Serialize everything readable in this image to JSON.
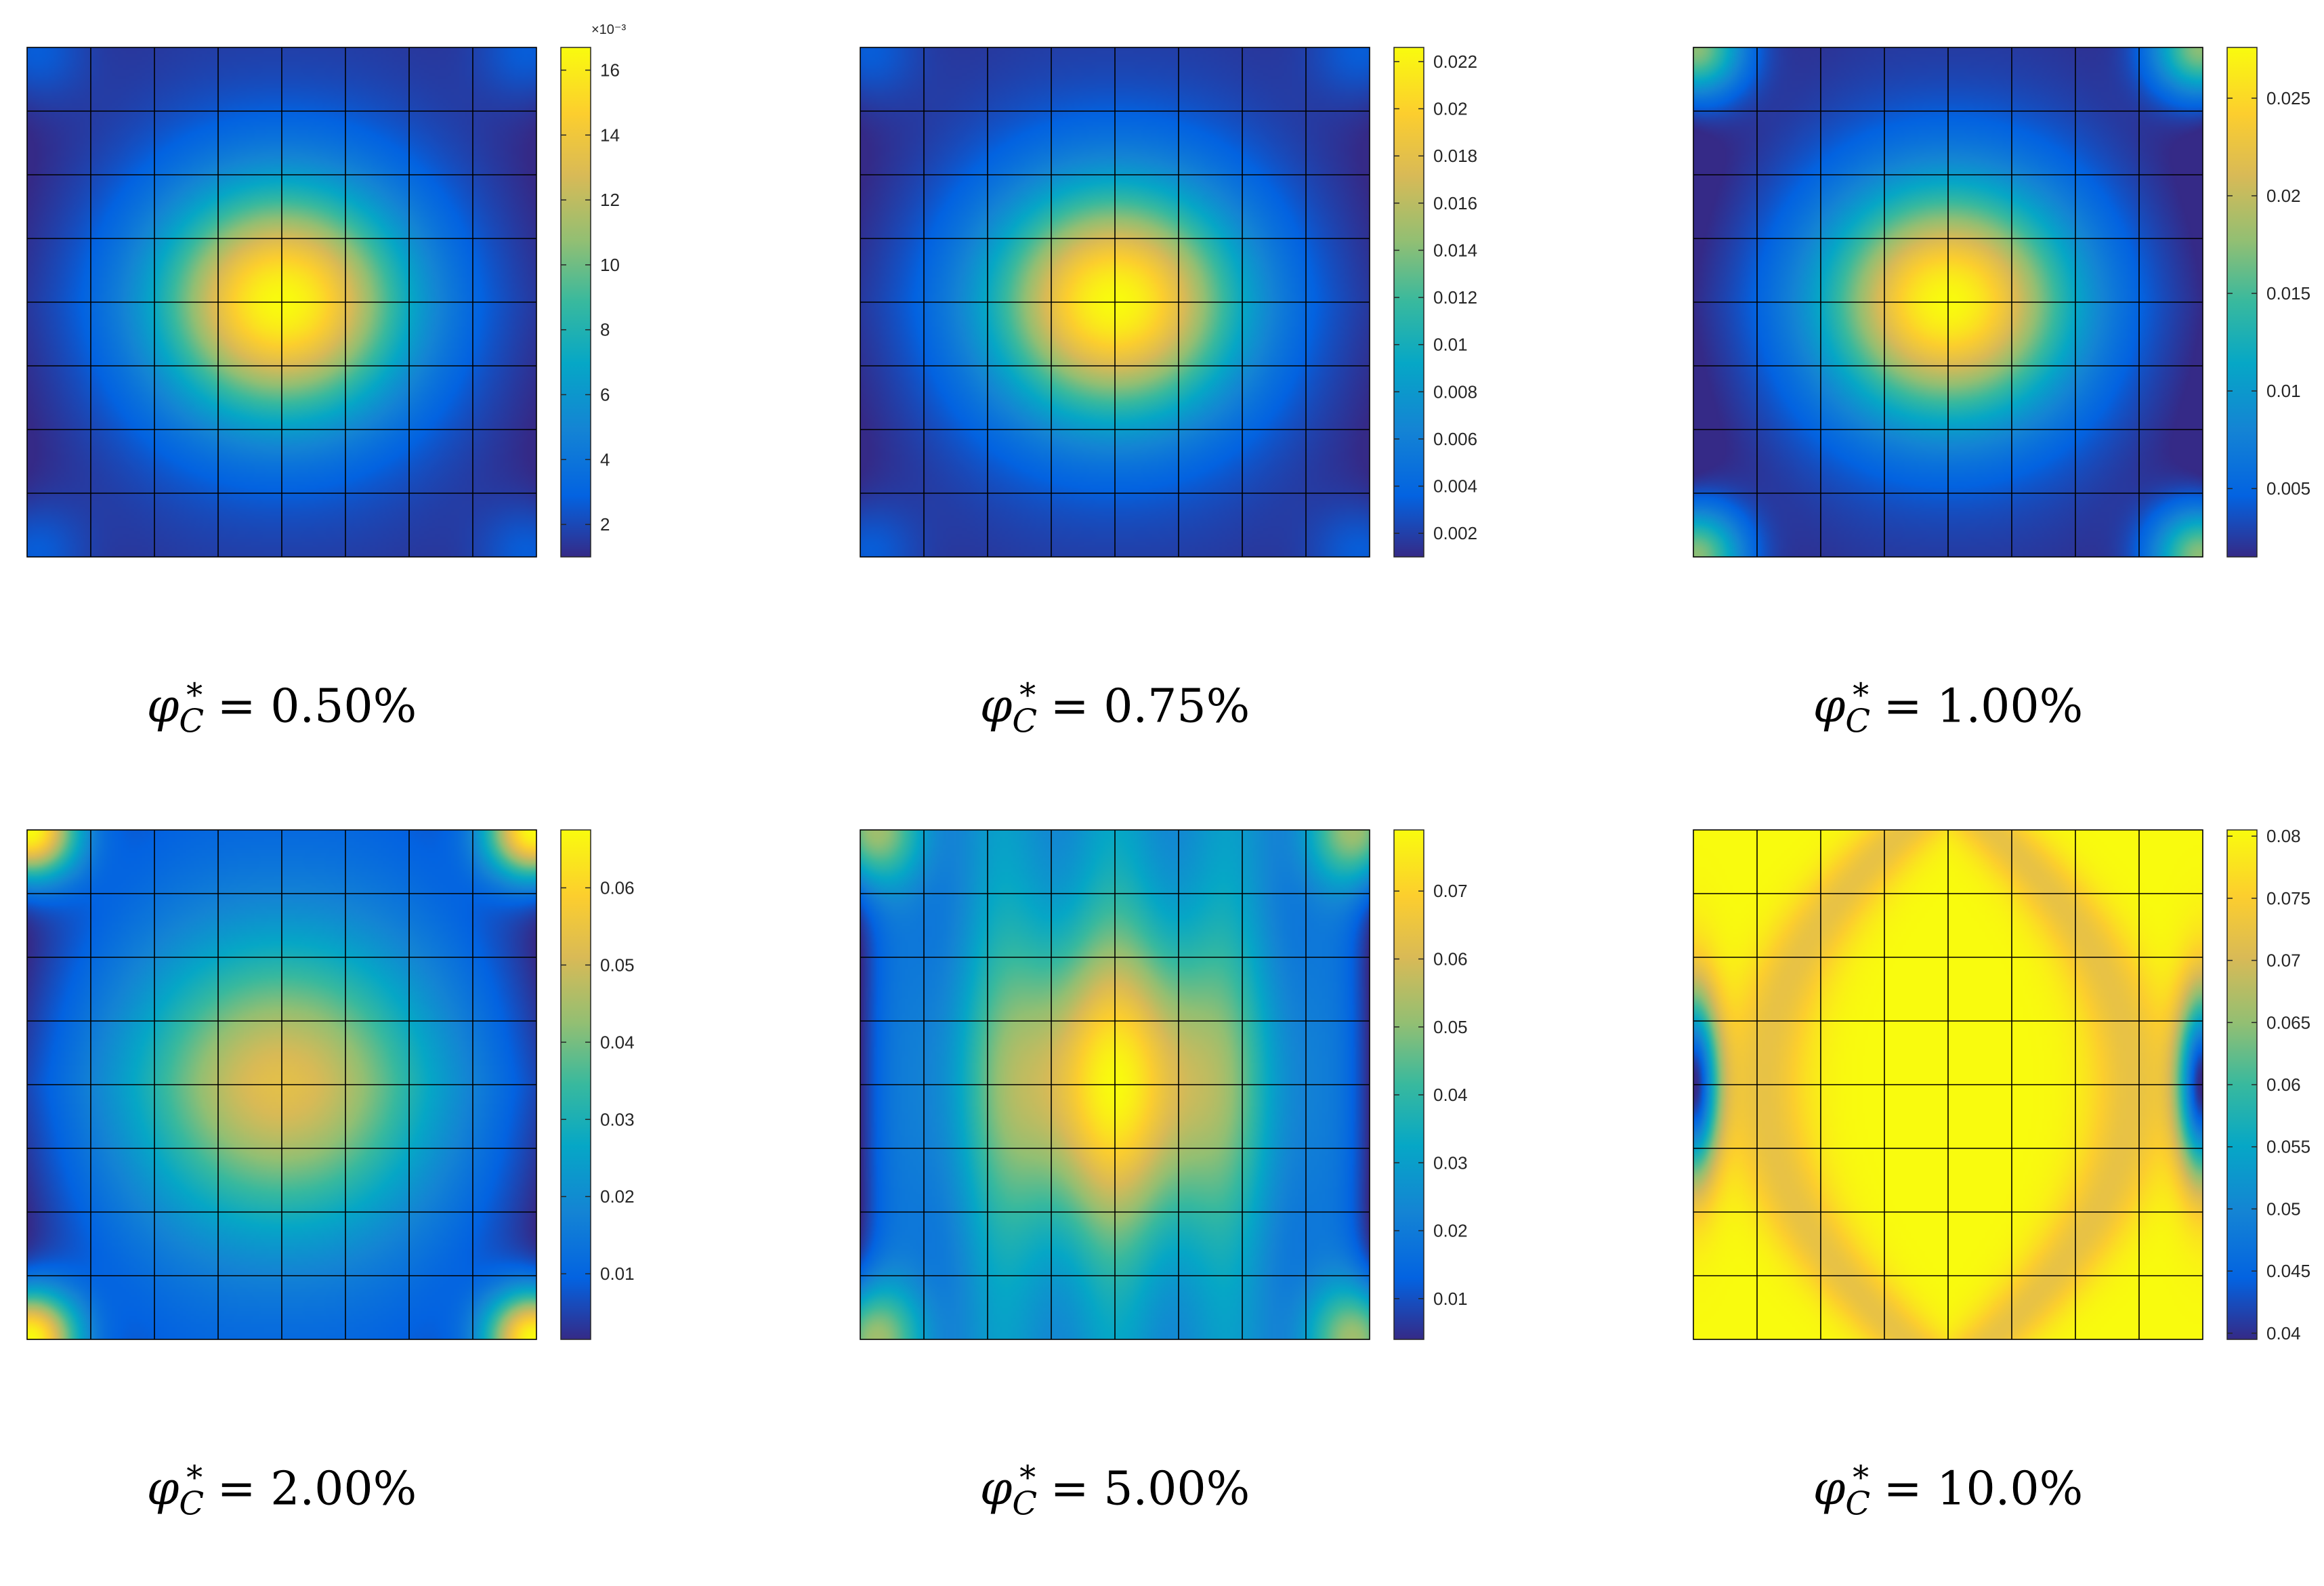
{
  "figure": {
    "rows": 2,
    "cols": 3,
    "colormap": "parula"
  },
  "chart_data": [
    {
      "type": "heatmap",
      "title": "",
      "caption": {
        "symbol": "φ",
        "sub": "C",
        "sup": "*",
        "eq": "= 0.50%"
      },
      "pattern": "center-peak",
      "mesh": "8x8",
      "colorbar": {
        "min": 0.001,
        "max": 0.0167,
        "ticks": [
          2,
          4,
          6,
          8,
          10,
          12,
          14,
          16
        ],
        "tick_labels": [
          "2",
          "4",
          "6",
          "8",
          "10",
          "12",
          "14",
          "16"
        ],
        "scale": 0.001,
        "exponent_label": "×10⁻³"
      }
    },
    {
      "type": "heatmap",
      "title": "",
      "caption": {
        "symbol": "φ",
        "sub": "C",
        "sup": "*",
        "eq": "= 0.75%"
      },
      "pattern": "center-peak",
      "mesh": "8x8",
      "colorbar": {
        "min": 0.001,
        "max": 0.0226,
        "ticks": [
          0.002,
          0.004,
          0.006,
          0.008,
          0.01,
          0.012,
          0.014,
          0.016,
          0.018,
          0.02,
          0.022
        ],
        "tick_labels": [
          "0.002",
          "0.004",
          "0.006",
          "0.008",
          "0.01",
          "0.012",
          "0.014",
          "0.016",
          "0.018",
          "0.02",
          "0.022"
        ],
        "scale": 1,
        "exponent_label": ""
      }
    },
    {
      "type": "heatmap",
      "title": "",
      "caption": {
        "symbol": "φ",
        "sub": "C",
        "sup": "*",
        "eq": "= 1.00%"
      },
      "pattern": "center-peak-corners",
      "mesh": "8x8",
      "colorbar": {
        "min": 0.0015,
        "max": 0.0276,
        "ticks": [
          0.005,
          0.01,
          0.015,
          0.02,
          0.025
        ],
        "tick_labels": [
          "0.005",
          "0.01",
          "0.015",
          "0.02",
          "0.025"
        ],
        "scale": 1,
        "exponent_label": ""
      }
    },
    {
      "type": "heatmap",
      "title": "",
      "caption": {
        "symbol": "φ",
        "sub": "C",
        "sup": "*",
        "eq": "= 2.00%"
      },
      "pattern": "corner-peaks",
      "mesh": "8x8",
      "colorbar": {
        "min": 0.0015,
        "max": 0.0675,
        "ticks": [
          0.01,
          0.02,
          0.03,
          0.04,
          0.05,
          0.06
        ],
        "tick_labels": [
          "0.01",
          "0.02",
          "0.03",
          "0.04",
          "0.05",
          "0.06"
        ],
        "scale": 1,
        "exponent_label": ""
      }
    },
    {
      "type": "heatmap",
      "title": "",
      "caption": {
        "symbol": "φ",
        "sub": "C",
        "sup": "*",
        "eq": "= 5.00%"
      },
      "pattern": "center-and-corners",
      "mesh": "8x8",
      "colorbar": {
        "min": 0.004,
        "max": 0.079,
        "ticks": [
          0.01,
          0.02,
          0.03,
          0.04,
          0.05,
          0.06,
          0.07
        ],
        "tick_labels": [
          "0.01",
          "0.02",
          "0.03",
          "0.04",
          "0.05",
          "0.06",
          "0.07"
        ],
        "scale": 1,
        "exponent_label": ""
      }
    },
    {
      "type": "heatmap",
      "title": "",
      "caption": {
        "symbol": "φ",
        "sub": "C",
        "sup": "*",
        "eq": "= 10.0%"
      },
      "pattern": "hourglass-high",
      "mesh": "8x8",
      "colorbar": {
        "min": 0.0395,
        "max": 0.0805,
        "ticks": [
          0.04,
          0.045,
          0.05,
          0.055,
          0.06,
          0.065,
          0.07,
          0.075,
          0.08
        ],
        "tick_labels": [
          "0.04",
          "0.045",
          "0.05",
          "0.055",
          "0.06",
          "0.065",
          "0.07",
          "0.075",
          "0.08"
        ],
        "scale": 1,
        "exponent_label": ""
      }
    }
  ]
}
